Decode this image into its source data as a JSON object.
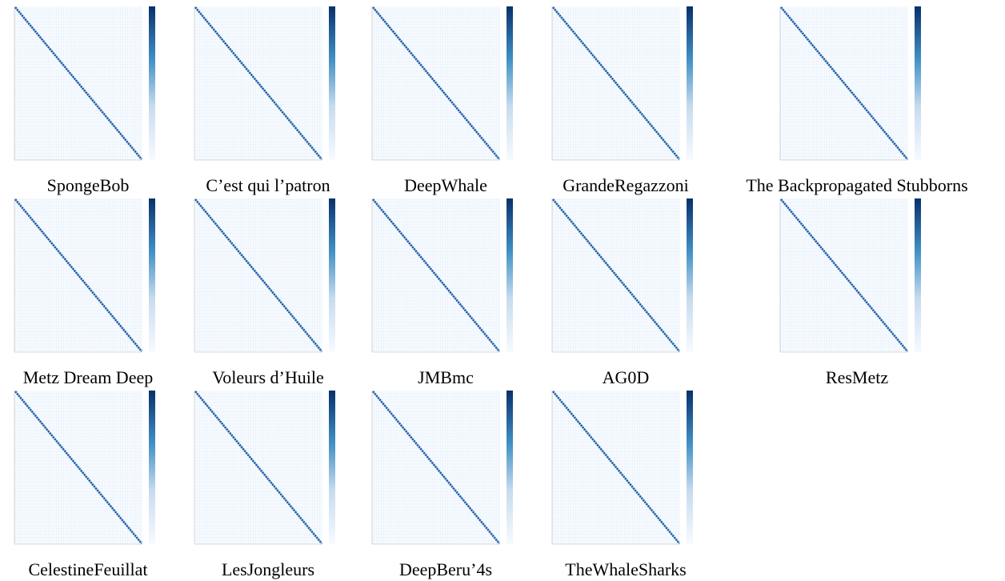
{
  "panels": [
    {
      "caption": "SpongeBob"
    },
    {
      "caption": "C’est qui l’patron"
    },
    {
      "caption": "DeepWhale"
    },
    {
      "caption": "GrandeRegazzoni"
    },
    {
      "caption": "The Backpropagated Stubborns"
    },
    {
      "caption": "Metz Dream Deep"
    },
    {
      "caption": "Voleurs d’Huile"
    },
    {
      "caption": "JMBmc"
    },
    {
      "caption": "AG0D"
    },
    {
      "caption": "ResMetz"
    },
    {
      "caption": "CelestineFeuillat"
    },
    {
      "caption": "LesJongleurs"
    },
    {
      "caption": "DeepBeru’4s"
    },
    {
      "caption": "TheWhaleSharks"
    }
  ]
}
